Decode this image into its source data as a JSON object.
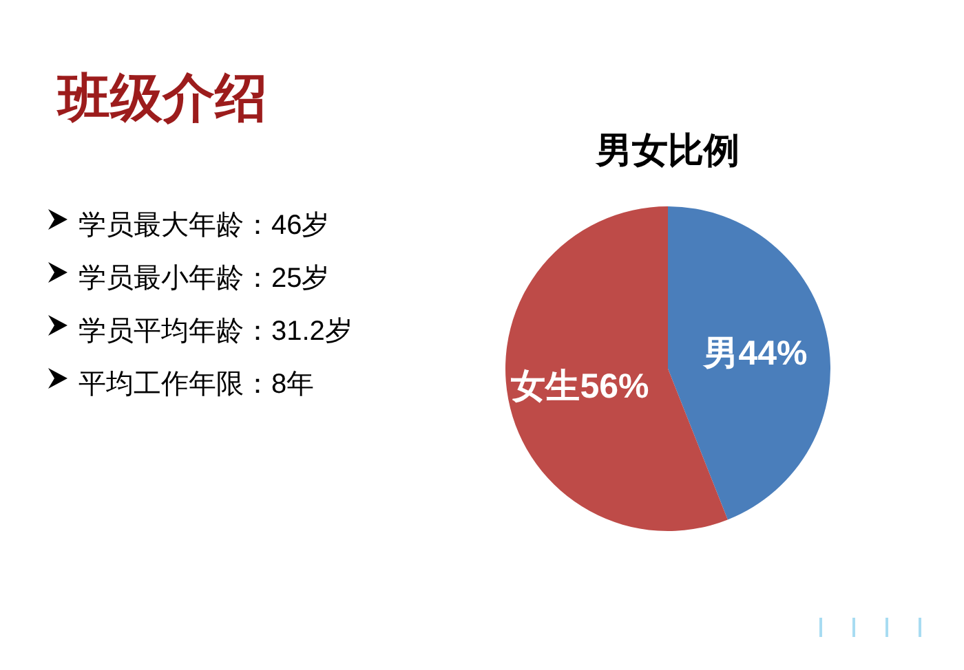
{
  "chart_data": [
    {
      "type": "other",
      "title": "班级介绍",
      "annotations": [
        "学员最大年龄：46岁",
        "学员最小年龄：25岁",
        "学员平均年龄：31.2岁",
        "平均工作年限：8年"
      ]
    },
    {
      "type": "pie",
      "title": "男女比例",
      "categories": [
        "男",
        "女生"
      ],
      "values": [
        44,
        56
      ],
      "colors": [
        "#4a7ebb",
        "#be4b48"
      ],
      "value_labels": [
        "44%",
        "56%"
      ]
    }
  ]
}
